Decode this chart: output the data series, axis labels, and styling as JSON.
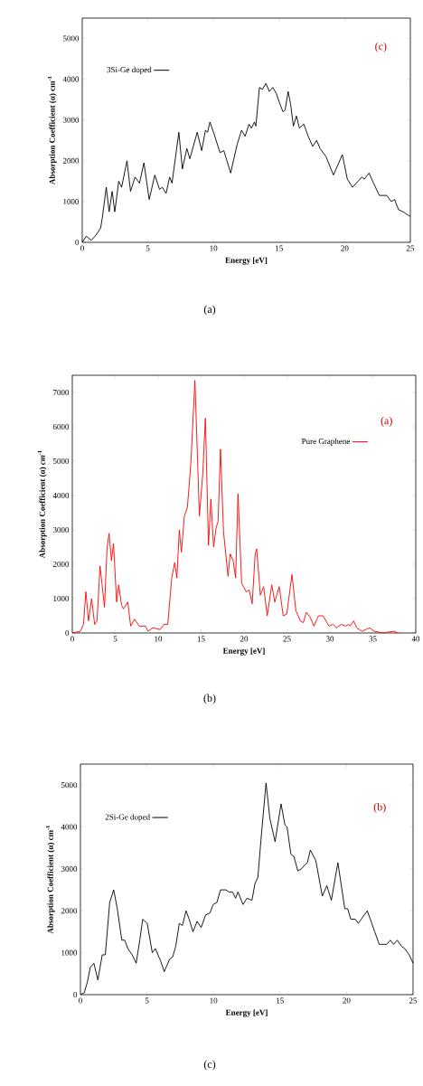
{
  "chart_data": [
    {
      "type": "line",
      "xlabel": "Energy [eV]",
      "ylabel": "Absorption Coefficient (α) cm$^{-1}$",
      "xlim": [
        0,
        25
      ],
      "ylim": [
        0,
        5500
      ],
      "xticks": [
        0,
        5,
        10,
        15,
        20,
        25
      ],
      "yticks": [
        0,
        1000,
        2000,
        3000,
        4000,
        5000
      ],
      "legend": "top left",
      "annotations": [
        "(c)",
        "(a)"
      ],
      "x": [
        0,
        0.3,
        0.7,
        1.1,
        1.4,
        1.53,
        1.83,
        2.05,
        2.28,
        2.48,
        2.78,
        3.0,
        3.41,
        3.68,
        4.02,
        4.36,
        4.7,
        5.1,
        5.53,
        5.89,
        6.1,
        6.39,
        6.66,
        6.84,
        7.36,
        7.63,
        7.97,
        8.2,
        8.76,
        9.1,
        9.39,
        9.55,
        9.73,
        10.0,
        10.5,
        10.79,
        11.31,
        11.8,
        12.14,
        12.41,
        12.71,
        12.89,
        13.12,
        13.23,
        13.5,
        13.72,
        14.0,
        14.25,
        14.52,
        14.79,
        15.0,
        15.3,
        15.46,
        15.69,
        15.87,
        16.09,
        16.32,
        16.55,
        16.88,
        17.22,
        17.56,
        17.86,
        18.12,
        18.58,
        19.14,
        19.48,
        19.82,
        20.2,
        20.6,
        21.3,
        21.5,
        21.85,
        22.2,
        22.64,
        23.2,
        23.55,
        23.8,
        24.1,
        24.45,
        24.9,
        25
      ],
      "series": [
        {
          "name": "3Si-Ge doped",
          "color": "#000000",
          "values": [
            0,
            150,
            50,
            200,
            350,
            600,
            1350,
            750,
            1250,
            750,
            1500,
            1350,
            2000,
            1250,
            1600,
            1450,
            1950,
            1050,
            1650,
            1300,
            1350,
            1200,
            1600,
            1450,
            2700,
            1800,
            2300,
            2050,
            2700,
            2250,
            2750,
            2700,
            2950,
            2700,
            2200,
            2250,
            1700,
            2400,
            2750,
            2600,
            2900,
            2800,
            2950,
            2850,
            3800,
            3750,
            3900,
            3700,
            3800,
            3650,
            3450,
            3200,
            3250,
            3700,
            3400,
            2850,
            3100,
            2800,
            2900,
            2600,
            2350,
            2500,
            2300,
            2100,
            1650,
            1900,
            2150,
            1550,
            1350,
            1600,
            1550,
            1700,
            1450,
            1150,
            1150,
            1000,
            1050,
            800,
            750,
            650,
            650
          ]
        }
      ]
    },
    {
      "type": "line",
      "xlabel": "Energy [eV]",
      "ylabel": "Absorption Coefficient (α) *cm*$^{-1}$",
      "xlim": [
        0,
        40
      ],
      "ylim": [
        0,
        7500
      ],
      "xticks": [
        0,
        5,
        10,
        15,
        20,
        25,
        30,
        35,
        40
      ],
      "yticks": [
        0,
        1000,
        2000,
        3000,
        4000,
        5000,
        6000,
        7000
      ],
      "legend": "top right",
      "annotations": [
        "(a)",
        "(b)"
      ],
      "x": [
        0,
        0.95,
        1.3,
        1.58,
        1.89,
        2.25,
        2.6,
        2.88,
        3.23,
        3.47,
        3.75,
        4.04,
        4.28,
        4.56,
        4.8,
        5.16,
        5.4,
        5.75,
        5.96,
        6.46,
        6.8,
        7.26,
        7.79,
        8.5,
        8.84,
        9.37,
        10.25,
        10.67,
        11.12,
        11.58,
        11.93,
        12.18,
        12.46,
        12.7,
        13.05,
        13.4,
        13.58,
        13.82,
        14.28,
        14.53,
        14.8,
        15.2,
        15.5,
        15.86,
        16.14,
        16.46,
        16.74,
        16.98,
        17.26,
        17.61,
        18.14,
        18.39,
        18.74,
        19.02,
        19.3,
        19.72,
        20.25,
        20.6,
        20.95,
        21.3,
        21.47,
        21.9,
        22.28,
        22.7,
        23.23,
        23.58,
        24.1,
        24.56,
        24.98,
        25.58,
        26.04,
        26.56,
        26.9,
        27.26,
        27.72,
        28.14,
        28.67,
        29.2,
        29.9,
        30.35,
        30.77,
        31.3,
        31.82,
        32.18,
        32.35,
        32.77,
        33.12,
        33.75,
        34.63,
        35.16,
        36.2,
        37.4,
        37.96
      ],
      "series": [
        {
          "name": "Pure Graphene",
          "color": "#ff0000",
          "values": [
            0,
            50,
            250,
            1200,
            350,
            1000,
            250,
            350,
            1950,
            1400,
            750,
            2450,
            2900,
            2100,
            2600,
            900,
            1400,
            800,
            700,
            900,
            200,
            400,
            200,
            200,
            50,
            150,
            100,
            250,
            250,
            1600,
            2050,
            1600,
            3000,
            2350,
            3400,
            3650,
            4200,
            5000,
            7350,
            5500,
            3400,
            4650,
            6250,
            2550,
            3900,
            2500,
            3050,
            3250,
            5350,
            2950,
            1650,
            2300,
            2100,
            1600,
            4050,
            1450,
            1200,
            1250,
            850,
            2300,
            2450,
            1100,
            1350,
            500,
            1400,
            900,
            1350,
            500,
            550,
            1700,
            650,
            350,
            300,
            600,
            450,
            200,
            500,
            500,
            200,
            250,
            150,
            250,
            200,
            250,
            200,
            350,
            150,
            50,
            150,
            50,
            0,
            50,
            0
          ]
        }
      ]
    },
    {
      "type": "line",
      "xlabel": "Energy [eV]",
      "ylabel": "Absorption Coefficient (α) cm$^{-1}$",
      "xlim": [
        0,
        25
      ],
      "ylim": [
        0,
        5500
      ],
      "xticks": [
        0,
        5,
        10,
        15,
        20,
        25
      ],
      "yticks": [
        0,
        1000,
        2000,
        3000,
        4000,
        5000
      ],
      "legend": "top left",
      "annotations": [
        "(b)",
        "(c)"
      ],
      "x": [
        0,
        0.29,
        0.52,
        0.74,
        1.01,
        1.31,
        1.64,
        1.87,
        2.2,
        2.5,
        2.77,
        3.11,
        3.33,
        3.56,
        3.89,
        4.19,
        4.46,
        4.68,
        5.02,
        5.4,
        5.63,
        6.03,
        6.3,
        6.71,
        6.93,
        7.16,
        7.43,
        7.66,
        7.94,
        8.17,
        8.46,
        8.77,
        9.07,
        9.41,
        9.74,
        9.97,
        10.26,
        10.53,
        10.71,
        10.93,
        11.16,
        11.43,
        11.66,
        11.84,
        12.22,
        12.51,
        12.89,
        13.12,
        13.34,
        13.57,
        13.95,
        14.24,
        14.63,
        15.08,
        15.37,
        15.53,
        15.82,
        16.04,
        16.34,
        16.61,
        16.88,
        17.06,
        17.28,
        17.69,
        18.18,
        18.52,
        18.86,
        19.35,
        19.87,
        20.09,
        20.32,
        20.66,
        20.88,
        21.22,
        21.56,
        21.9,
        22.12,
        22.46,
        22.79,
        23.02,
        23.29,
        23.54,
        23.81,
        24.14,
        24.37,
        24.71,
        25
      ],
      "series": [
        {
          "name": "2Si-Ge doped",
          "color": "#000000",
          "values": [
            0,
            50,
            300,
            650,
            750,
            350,
            950,
            950,
            2200,
            2500,
            2050,
            1300,
            1300,
            1100,
            950,
            750,
            1300,
            1800,
            1700,
            1000,
            1100,
            800,
            550,
            850,
            900,
            1150,
            1700,
            1650,
            2000,
            1800,
            1500,
            1750,
            1600,
            1900,
            1950,
            2150,
            2200,
            2500,
            2500,
            2500,
            2450,
            2450,
            2300,
            2450,
            2150,
            2300,
            2250,
            2650,
            2800,
            3700,
            5050,
            4200,
            3650,
            4550,
            4050,
            4000,
            3350,
            3300,
            2950,
            3000,
            3100,
            3150,
            3450,
            3200,
            2350,
            2600,
            2250,
            3150,
            2050,
            2050,
            1800,
            1800,
            1700,
            1850,
            2000,
            1700,
            1500,
            1200,
            1200,
            1200,
            1300,
            1200,
            1300,
            1150,
            1100,
            950,
            750
          ]
        }
      ]
    }
  ]
}
